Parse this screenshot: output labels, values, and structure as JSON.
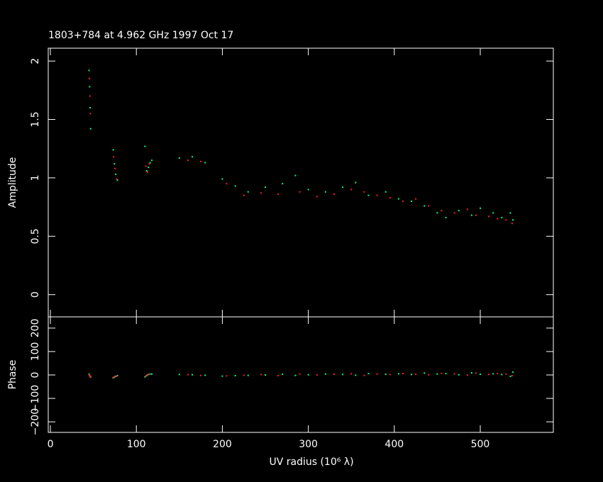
{
  "chart_data": [
    {
      "type": "scatter",
      "title": "1803+784 at 4.962 GHz 1997 Oct 17",
      "ylabel": "Amplitude",
      "xlim": [
        -2.5,
        585
      ],
      "xticks": [
        0,
        100,
        200,
        300,
        400,
        500
      ],
      "ylim": [
        -0.19,
        2.11
      ],
      "yticks": [
        0,
        0.5,
        1,
        1.5,
        2
      ],
      "series": [
        {
          "color": "#00ff80",
          "x": [
            45,
            45.6,
            46.2,
            46.8,
            73,
            74.5,
            76,
            78,
            110,
            112,
            114,
            116,
            118,
            150,
            165,
            180,
            200,
            215,
            230,
            250,
            270,
            285,
            300,
            320,
            340,
            355,
            370,
            390,
            405,
            420,
            435,
            450,
            460,
            475,
            490,
            500,
            515,
            525,
            535,
            538
          ],
          "values": [
            1.92,
            1.78,
            1.6,
            1.42,
            1.24,
            1.12,
            1.03,
            0.98,
            1.27,
            1.06,
            1.09,
            1.13,
            1.15,
            1.17,
            1.18,
            1.13,
            0.99,
            0.93,
            0.88,
            0.92,
            0.95,
            1.02,
            0.9,
            0.88,
            0.92,
            0.96,
            0.85,
            0.88,
            0.82,
            0.8,
            0.76,
            0.7,
            0.66,
            0.72,
            0.68,
            0.74,
            0.7,
            0.66,
            0.7,
            0.64
          ]
        },
        {
          "color": "#ff2020",
          "x": [
            45.3,
            46,
            46.5,
            73.5,
            75,
            77,
            111,
            113,
            115,
            160,
            175,
            205,
            225,
            245,
            265,
            290,
            310,
            330,
            350,
            365,
            380,
            395,
            410,
            425,
            440,
            455,
            470,
            485,
            495,
            510,
            520,
            530,
            537
          ],
          "values": [
            1.85,
            1.7,
            1.55,
            1.18,
            1.08,
            0.99,
            1.1,
            1.05,
            1.12,
            1.15,
            1.14,
            0.95,
            0.85,
            0.87,
            0.86,
            0.88,
            0.84,
            0.86,
            0.9,
            0.88,
            0.85,
            0.83,
            0.8,
            0.82,
            0.76,
            0.72,
            0.7,
            0.73,
            0.68,
            0.67,
            0.65,
            0.64,
            0.61
          ]
        }
      ]
    },
    {
      "type": "scatter",
      "ylabel": "Phase",
      "xlabel": "UV radius  (10⁶ λ)",
      "xlim": [
        -2.5,
        585
      ],
      "xticks": [
        0,
        100,
        200,
        300,
        400,
        500
      ],
      "ylim": [
        -245,
        248
      ],
      "yticks": [
        {
          "value": -200,
          "label": "−200"
        },
        {
          "value": -100,
          "label": "−100"
        },
        0,
        100,
        200
      ],
      "series": [
        {
          "color": "#00ff80",
          "x": [
            45,
            45.6,
            46.2,
            46.8,
            73,
            74.5,
            76,
            78,
            110,
            112,
            114,
            116,
            118,
            150,
            165,
            180,
            200,
            215,
            230,
            250,
            270,
            285,
            300,
            320,
            340,
            355,
            370,
            390,
            405,
            420,
            435,
            450,
            460,
            475,
            490,
            500,
            515,
            525,
            535,
            538
          ],
          "values": [
            3,
            -2,
            -6,
            -9,
            -12,
            -9,
            -6,
            -3,
            -8,
            -2,
            2,
            4,
            4,
            2,
            1,
            -1,
            -5,
            -3,
            -2,
            0,
            3,
            -2,
            1,
            4,
            2,
            -1,
            6,
            3,
            5,
            2,
            8,
            4,
            6,
            1,
            9,
            3,
            5,
            2,
            -6,
            12
          ]
        },
        {
          "color": "#ff2020",
          "x": [
            45.3,
            46,
            46.5,
            73.5,
            75,
            77,
            111,
            113,
            115,
            160,
            175,
            205,
            225,
            245,
            265,
            290,
            310,
            330,
            350,
            365,
            380,
            395,
            410,
            425,
            440,
            455,
            470,
            485,
            495,
            510,
            520,
            530,
            537
          ],
          "values": [
            0,
            -5,
            -8,
            -10,
            -7,
            -4,
            -5,
            0,
            3,
            1,
            -2,
            -4,
            -1,
            2,
            -3,
            4,
            0,
            3,
            5,
            -2,
            4,
            2,
            6,
            3,
            1,
            7,
            5,
            -1,
            8,
            2,
            6,
            4,
            -3
          ]
        }
      ]
    }
  ]
}
